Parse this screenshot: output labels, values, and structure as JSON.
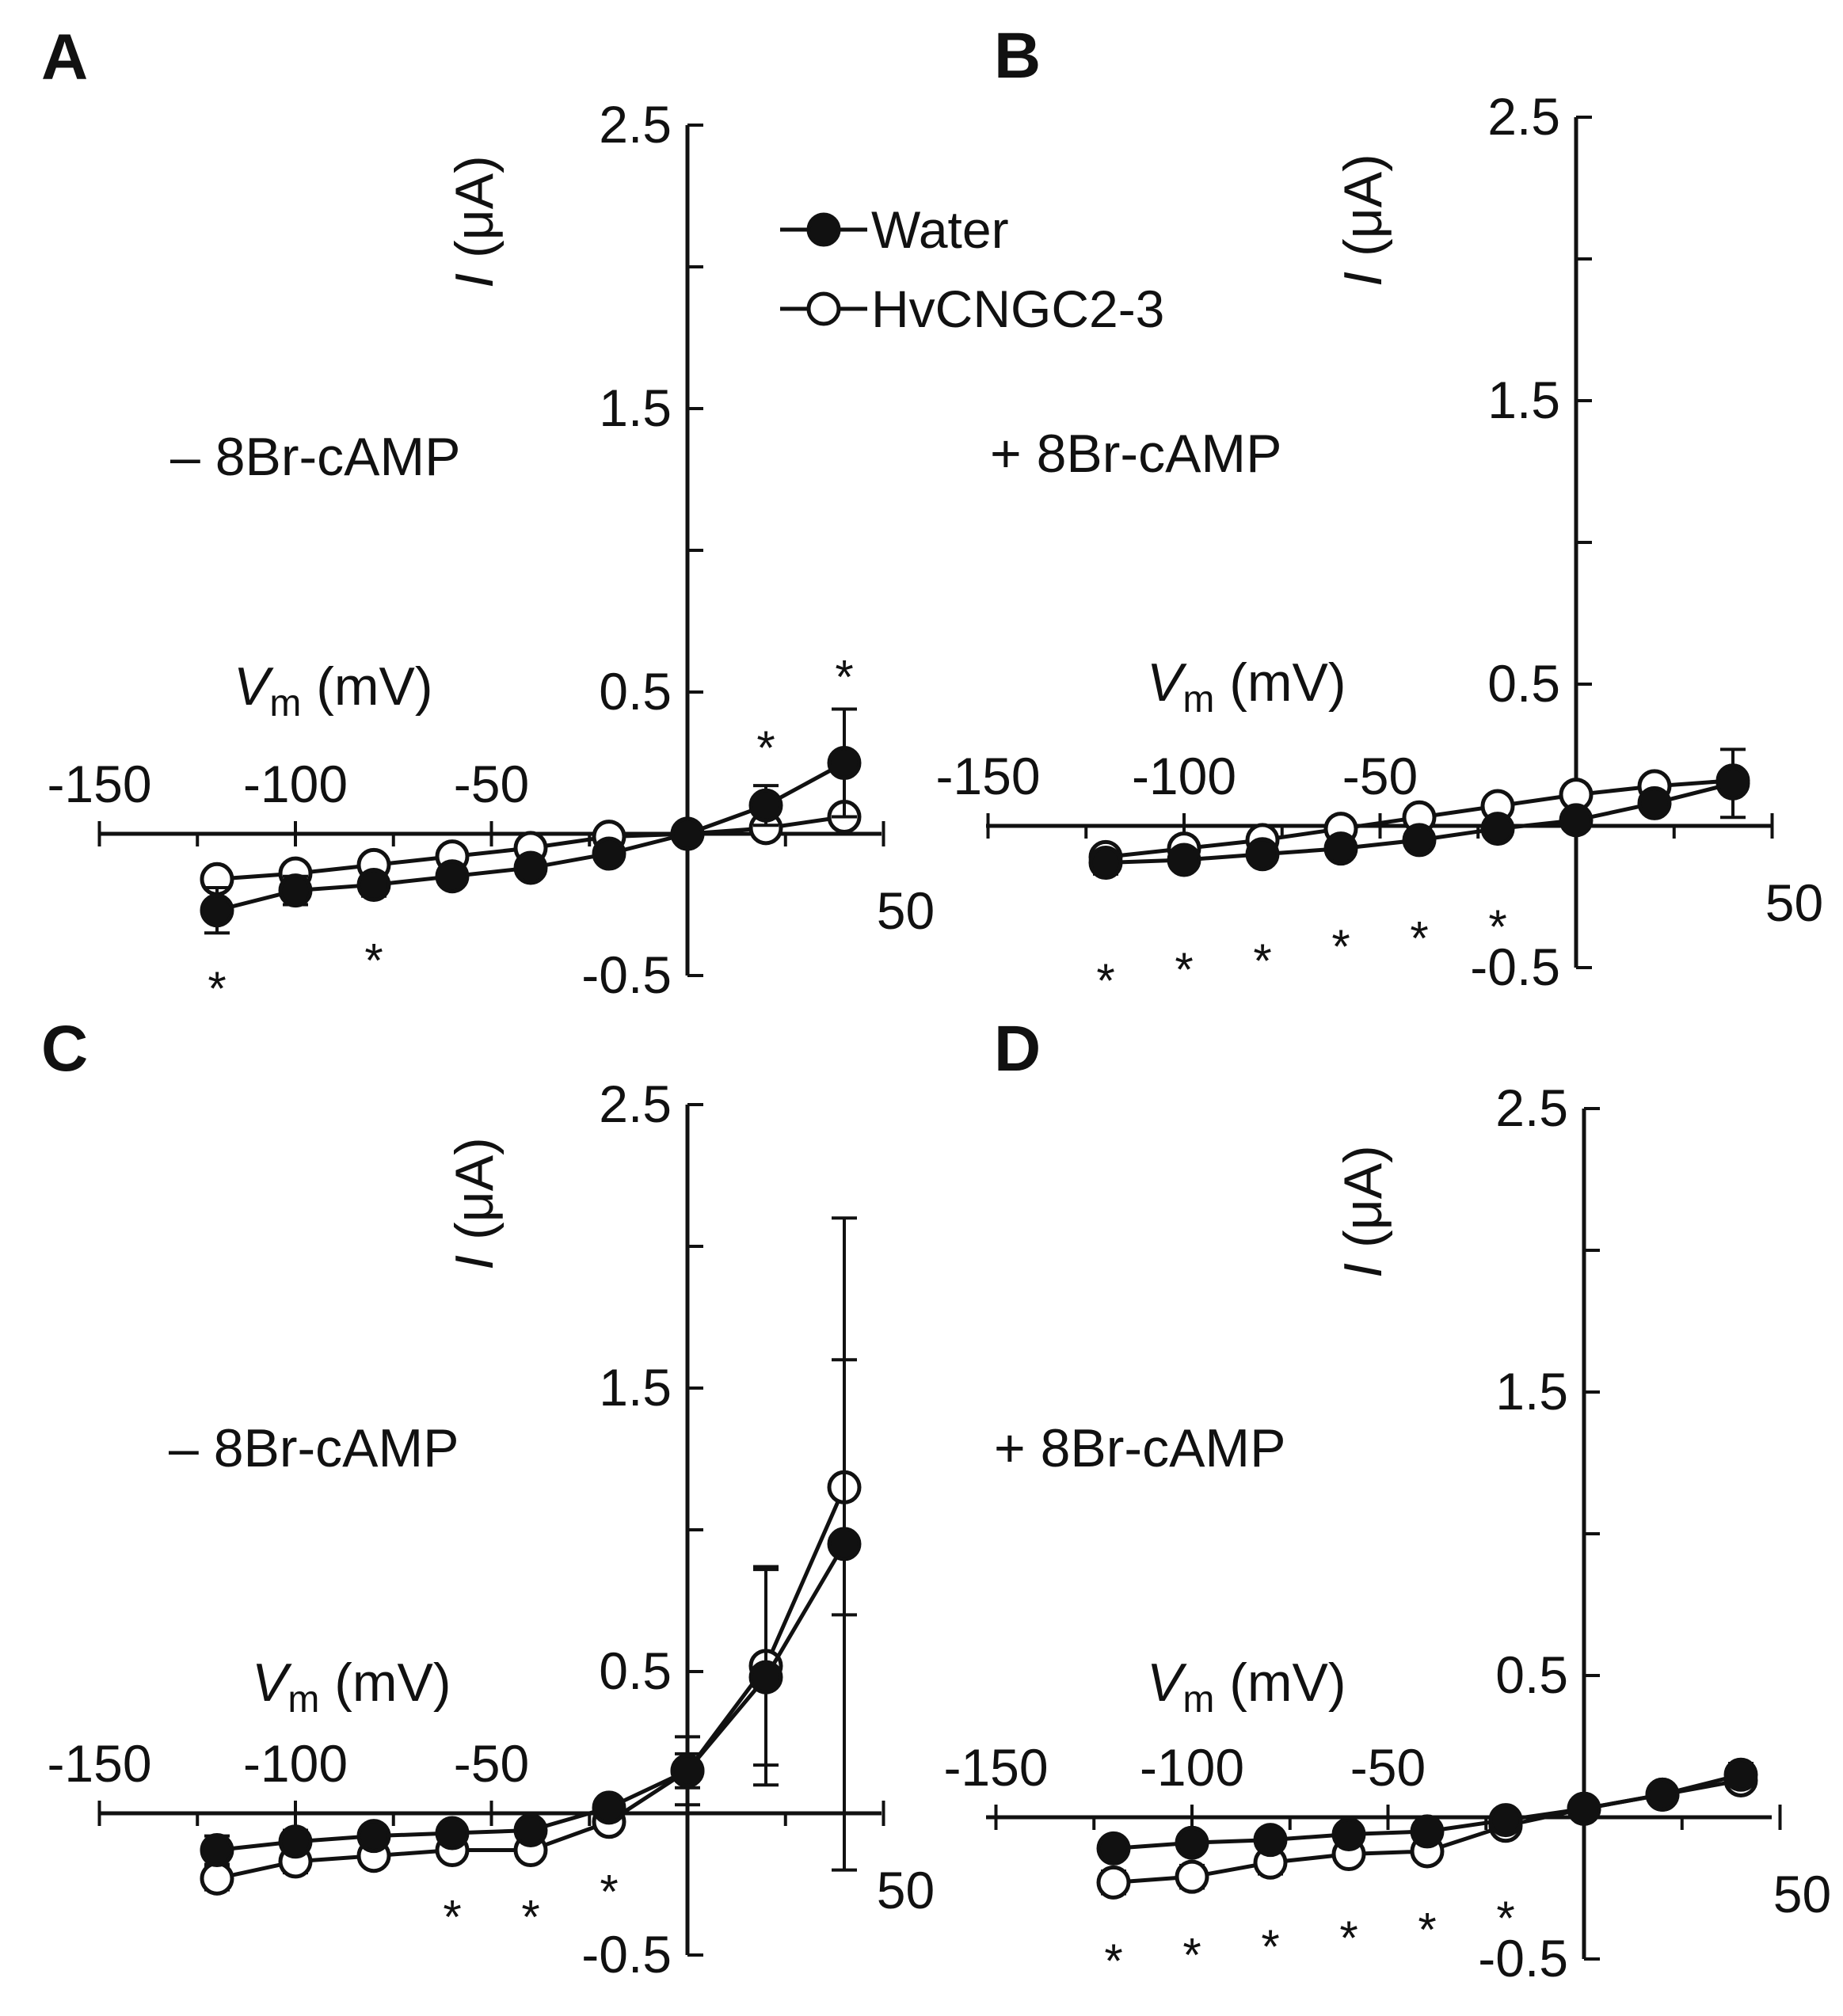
{
  "legend": {
    "water_label": "Water",
    "hv_label": "HvCNGC2-3"
  },
  "chart_data": [
    {
      "panel": "A",
      "type": "line",
      "condition": "– 8Br-cAMP",
      "xlabel_italic": "V",
      "xlabel_sub": "m",
      "xlabel_unit": "(mV)",
      "ylabel_italic": "I",
      "ylabel_unit": "(μA)",
      "xlim": [
        -150,
        50
      ],
      "ylim": [
        -0.5,
        2.5
      ],
      "x_tick_labels": [
        "-150",
        "-100",
        "-50",
        "50"
      ],
      "y_tick_labels": [
        "2.5",
        "1.5",
        "0.5",
        "-0.5"
      ],
      "series": [
        {
          "name": "Water",
          "x": [
            -120,
            -100,
            -80,
            -60,
            -40,
            -20,
            0,
            20,
            40
          ],
          "values": [
            -0.27,
            -0.2,
            -0.18,
            -0.15,
            -0.12,
            -0.07,
            0.0,
            0.1,
            0.25
          ],
          "errors": [
            0.08,
            0.05,
            0.04,
            0.03,
            0.02,
            0.02,
            0.01,
            0.07,
            0.19
          ]
        },
        {
          "name": "HvCNGC2-3",
          "x": [
            -120,
            -100,
            -80,
            -60,
            -40,
            -20,
            0,
            20,
            40
          ],
          "values": [
            -0.16,
            -0.14,
            -0.11,
            -0.08,
            -0.05,
            -0.01,
            0.0,
            0.02,
            0.06
          ],
          "errors": [
            0.01,
            0.01,
            0.01,
            0.01,
            0.01,
            0.01,
            0.01,
            0.02,
            0.02
          ]
        }
      ],
      "annotations": [
        {
          "text": "*",
          "x": -120,
          "y": -0.52
        },
        {
          "text": "*",
          "x": -80,
          "y": -0.42
        },
        {
          "text": "*",
          "x": 20,
          "y": 0.33
        },
        {
          "text": "*",
          "x": 40,
          "y": 0.58
        }
      ]
    },
    {
      "panel": "B",
      "type": "line",
      "condition": "+ 8Br-cAMP",
      "xlabel_italic": "V",
      "xlabel_sub": "m",
      "xlabel_unit": "(mV)",
      "ylabel_italic": "I",
      "ylabel_unit": "(μA)",
      "xlim": [
        -150,
        50
      ],
      "ylim": [
        -0.5,
        2.5
      ],
      "x_tick_labels": [
        "-150",
        "-100",
        "-50",
        "50"
      ],
      "y_tick_labels": [
        "2.5",
        "1.5",
        "0.5",
        "-0.5"
      ],
      "series": [
        {
          "name": "Water",
          "x": [
            -120,
            -100,
            -80,
            -60,
            -40,
            -20,
            0,
            20,
            40
          ],
          "values": [
            -0.13,
            -0.12,
            -0.1,
            -0.08,
            -0.05,
            -0.01,
            0.02,
            0.08,
            0.15
          ],
          "errors": [
            0.04,
            0.03,
            0.02,
            0.02,
            0.02,
            0.02,
            0.02,
            0.03,
            0.12
          ]
        },
        {
          "name": "HvCNGC2-3",
          "x": [
            -120,
            -100,
            -80,
            -60,
            -40,
            -20,
            0,
            20,
            40
          ],
          "values": [
            -0.11,
            -0.08,
            -0.05,
            -0.01,
            0.03,
            0.07,
            0.11,
            0.14,
            0.16
          ],
          "errors": [
            0.01,
            0.01,
            0.01,
            0.01,
            0.01,
            0.01,
            0.01,
            0.01,
            0.01
          ]
        }
      ],
      "annotations": [
        {
          "text": "*",
          "x": -120,
          "y": -0.52
        },
        {
          "text": "*",
          "x": -100,
          "y": -0.48
        },
        {
          "text": "*",
          "x": -80,
          "y": -0.45
        },
        {
          "text": "*",
          "x": -60,
          "y": -0.4
        },
        {
          "text": "*",
          "x": -40,
          "y": -0.37
        },
        {
          "text": "*",
          "x": -20,
          "y": -0.33
        }
      ]
    },
    {
      "panel": "C",
      "type": "line",
      "condition": "– 8Br-cAMP",
      "xlabel_italic": "V",
      "xlabel_sub": "m",
      "xlabel_unit": "(mV)",
      "ylabel_italic": "I",
      "ylabel_unit": "(μA)",
      "xlim": [
        -150,
        50
      ],
      "ylim": [
        -0.5,
        2.5
      ],
      "x_tick_labels": [
        "-150",
        "-100",
        "-50",
        "50"
      ],
      "y_tick_labels": [
        "2.5",
        "1.5",
        "0.5",
        "-0.5"
      ],
      "series": [
        {
          "name": "Water",
          "x": [
            -120,
            -100,
            -80,
            -60,
            -40,
            -20,
            0,
            20,
            40
          ],
          "values": [
            -0.13,
            -0.1,
            -0.08,
            -0.07,
            -0.06,
            0.02,
            0.15,
            0.48,
            0.95
          ],
          "errors": [
            0.05,
            0.04,
            0.03,
            0.03,
            0.03,
            0.02,
            0.12,
            0.38,
            1.15
          ]
        },
        {
          "name": "HvCNGC2-3",
          "x": [
            -120,
            -100,
            -80,
            -60,
            -40,
            -20,
            0,
            20,
            40
          ],
          "values": [
            -0.23,
            -0.17,
            -0.15,
            -0.13,
            -0.13,
            -0.03,
            0.15,
            0.52,
            1.15
          ],
          "errors": [
            0.04,
            0.04,
            0.03,
            0.03,
            0.03,
            0.02,
            0.06,
            0.35,
            0.45
          ]
        }
      ],
      "annotations": [
        {
          "text": "*",
          "x": -60,
          "y": -0.34
        },
        {
          "text": "*",
          "x": -40,
          "y": -0.34
        },
        {
          "text": "*",
          "x": -20,
          "y": -0.25
        }
      ]
    },
    {
      "panel": "D",
      "type": "line",
      "condition": "+ 8Br-cAMP",
      "xlabel_italic": "V",
      "xlabel_sub": "m",
      "xlabel_unit": "(mV)",
      "ylabel_italic": "I",
      "ylabel_unit": "(μA)",
      "xlim": [
        -150,
        50
      ],
      "ylim": [
        -0.5,
        2.5
      ],
      "x_tick_labels": [
        "-150",
        "-100",
        "-50",
        "50"
      ],
      "y_tick_labels": [
        "2.5",
        "1.5",
        "0.5",
        "-0.5"
      ],
      "series": [
        {
          "name": "Water",
          "x": [
            -120,
            -100,
            -80,
            -60,
            -40,
            -20,
            0,
            20,
            40
          ],
          "values": [
            -0.11,
            -0.09,
            -0.08,
            -0.06,
            -0.05,
            -0.01,
            0.03,
            0.08,
            0.15
          ],
          "errors": [
            0.02,
            0.02,
            0.02,
            0.02,
            0.02,
            0.02,
            0.01,
            0.02,
            0.04
          ]
        },
        {
          "name": "HvCNGC2-3",
          "x": [
            -120,
            -100,
            -80,
            -60,
            -40,
            -20,
            0,
            20,
            40
          ],
          "values": [
            -0.23,
            -0.21,
            -0.16,
            -0.13,
            -0.12,
            -0.03,
            0.03,
            0.08,
            0.13
          ],
          "errors": [
            0.04,
            0.04,
            0.04,
            0.03,
            0.03,
            0.02,
            0.01,
            0.02,
            0.03
          ]
        }
      ],
      "annotations": [
        {
          "text": "*",
          "x": -120,
          "y": -0.48
        },
        {
          "text": "*",
          "x": -100,
          "y": -0.46
        },
        {
          "text": "*",
          "x": -80,
          "y": -0.43
        },
        {
          "text": "*",
          "x": -60,
          "y": -0.4
        },
        {
          "text": "*",
          "x": -40,
          "y": -0.37
        },
        {
          "text": "*",
          "x": -20,
          "y": -0.33
        }
      ]
    }
  ]
}
